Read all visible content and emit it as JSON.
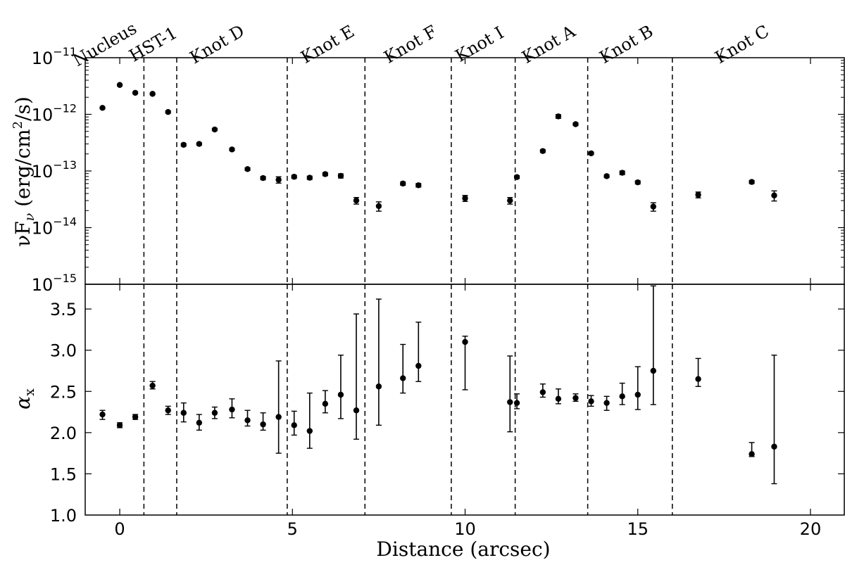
{
  "chart_data": {
    "type": "scatter",
    "x": [
      -0.5,
      0.0,
      0.45,
      0.95,
      1.4,
      1.85,
      2.3,
      2.75,
      3.25,
      3.7,
      4.15,
      4.6,
      5.05,
      5.5,
      5.95,
      6.4,
      6.85,
      7.5,
      8.2,
      8.65,
      10.0,
      11.3,
      11.5,
      12.25,
      12.7,
      13.2,
      13.65,
      14.1,
      14.55,
      15.0,
      15.45,
      16.75,
      18.3,
      18.95
    ],
    "xlabel": "Distance (arcsec)",
    "xlim": [
      -1.0,
      21.0
    ],
    "xticks": [
      0,
      5,
      10,
      15,
      20
    ],
    "xtick_labels": [
      "0",
      "5",
      "10",
      "15",
      "20"
    ],
    "region_boundaries": [
      0.7,
      1.65,
      4.85,
      7.1,
      9.6,
      11.45,
      13.55,
      16.0
    ],
    "region_labels": [
      {
        "name": "Nucleus",
        "x": -0.35
      },
      {
        "name": "HST-1",
        "x": 1.05
      },
      {
        "name": "Knot D",
        "x": 2.9
      },
      {
        "name": "Knot E",
        "x": 6.1
      },
      {
        "name": "Knot F",
        "x": 8.5
      },
      {
        "name": "Knot I",
        "x": 10.5
      },
      {
        "name": "Knot A",
        "x": 12.5
      },
      {
        "name": "Knot B",
        "x": 14.75
      },
      {
        "name": "Knot C",
        "x": 18.1
      }
    ],
    "panels": [
      {
        "name": "flux",
        "yscale": "log",
        "ylabel_main": "νF",
        "ylabel_sub": "ν",
        "ylabel_unit_pre": " (erg/cm",
        "ylabel_unit_sup": "2",
        "ylabel_unit_post": "/s)",
        "ylim": [
          1e-15,
          1e-11
        ],
        "yticks": [
          {
            "base": "10",
            "exp": "−11",
            "value": 1e-11
          },
          {
            "base": "10",
            "exp": "−12",
            "value": 1e-12
          },
          {
            "base": "10",
            "exp": "−13",
            "value": 1e-13
          },
          {
            "base": "10",
            "exp": "−14",
            "value": 1e-14
          },
          {
            "base": "10",
            "exp": "−15",
            "value": 1e-15
          }
        ],
        "y": [
          1.3e-12,
          3.3e-12,
          2.4e-12,
          2.3e-12,
          1.1e-12,
          2.9e-13,
          3e-13,
          5.4e-13,
          2.4e-13,
          1.08e-13,
          7.5e-14,
          7e-14,
          7.9e-14,
          7.6e-14,
          8.8e-14,
          8.2e-14,
          3e-14,
          2.4e-14,
          6e-14,
          5.6e-14,
          3.3e-14,
          3e-14,
          7.8e-14,
          2.25e-13,
          9.2e-13,
          6.7e-13,
          2.05e-13,
          8.1e-14,
          9.3e-14,
          6.3e-14,
          2.35e-14,
          3.8e-14,
          6.4e-14,
          3.7e-14
        ],
        "yerr": [
          5e-14,
          1e-13,
          8e-14,
          8e-14,
          5e-14,
          1.5e-14,
          1.5e-14,
          2.5e-14,
          1.2e-14,
          6e-15,
          5e-15,
          9e-15,
          5e-15,
          5e-15,
          5.5e-15,
          7e-15,
          4e-15,
          4.5e-15,
          4e-15,
          4e-15,
          4e-15,
          4e-15,
          4.5e-15,
          1.2e-14,
          7e-14,
          3.5e-14,
          1e-14,
          4.5e-15,
          7e-15,
          4e-15,
          4e-15,
          4.5e-15,
          4e-15,
          7.5e-15
        ]
      },
      {
        "name": "alpha",
        "yscale": "linear",
        "ylabel_main": "α",
        "ylabel_sub": "x",
        "ylim": [
          1.0,
          3.8
        ],
        "yticks": [
          {
            "label": "1.0",
            "value": 1.0
          },
          {
            "label": "1.5",
            "value": 1.5
          },
          {
            "label": "2.0",
            "value": 2.0
          },
          {
            "label": "2.5",
            "value": 2.5
          },
          {
            "label": "3.0",
            "value": 3.0
          },
          {
            "label": "3.5",
            "value": 3.5
          }
        ],
        "y": [
          2.22,
          2.09,
          2.19,
          2.57,
          2.27,
          2.24,
          2.12,
          2.24,
          2.28,
          2.15,
          2.1,
          2.19,
          2.09,
          2.02,
          2.35,
          2.46,
          2.27,
          2.56,
          2.66,
          2.81,
          3.1,
          2.37,
          2.36,
          2.49,
          2.41,
          2.42,
          2.38,
          2.36,
          2.44,
          2.46,
          2.75,
          2.65,
          1.74,
          1.83
        ],
        "ylow": [
          2.16,
          2.06,
          2.16,
          2.53,
          2.22,
          2.13,
          2.03,
          2.17,
          2.18,
          2.08,
          2.03,
          1.75,
          1.97,
          1.81,
          2.24,
          2.17,
          1.92,
          2.09,
          2.48,
          2.62,
          2.52,
          2.01,
          2.29,
          2.43,
          2.35,
          2.38,
          2.32,
          2.27,
          2.34,
          2.28,
          2.34,
          2.56,
          1.71,
          1.38
        ],
        "yhigh": [
          2.27,
          2.12,
          2.22,
          2.62,
          2.32,
          2.36,
          2.22,
          2.31,
          2.41,
          2.27,
          2.24,
          2.87,
          2.26,
          2.48,
          2.51,
          2.94,
          3.44,
          3.62,
          3.07,
          3.34,
          3.17,
          2.93,
          2.47,
          2.59,
          2.53,
          2.47,
          2.45,
          2.44,
          2.6,
          2.8,
          3.78,
          2.9,
          1.88,
          2.94
        ]
      }
    ]
  }
}
